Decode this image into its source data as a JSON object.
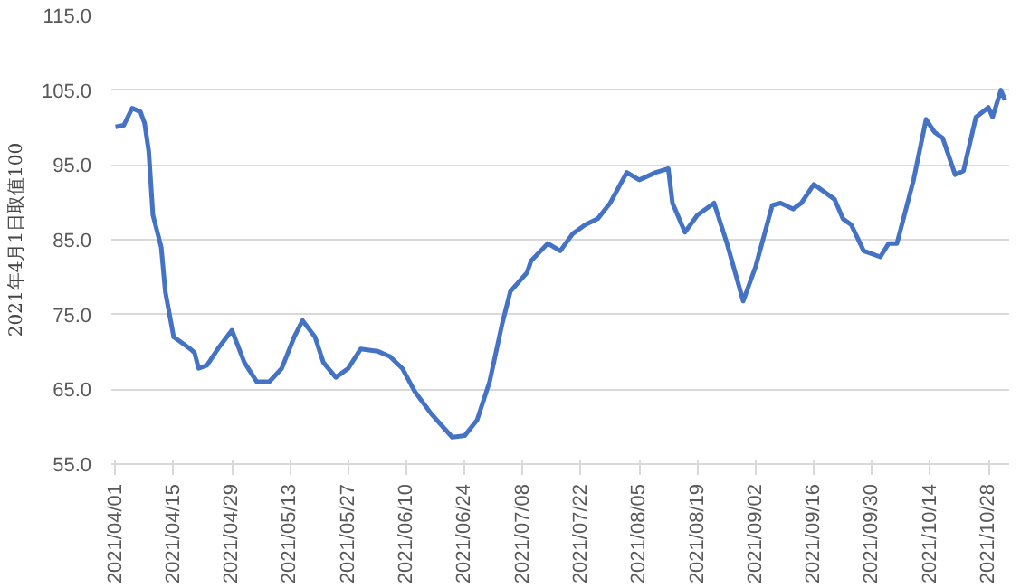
{
  "chart_data": {
    "type": "line",
    "ylabel": "2021年4月1日取值100",
    "ylim": [
      55.0,
      115.0
    ],
    "yticks": [
      {
        "value": 55,
        "label": "55.0"
      },
      {
        "value": 65,
        "label": "65.0"
      },
      {
        "value": 75,
        "label": "75.0"
      },
      {
        "value": 85,
        "label": "85.0"
      },
      {
        "value": 95,
        "label": "95.0"
      },
      {
        "value": 105,
        "label": "105.0"
      },
      {
        "value": 115,
        "label": "115.0"
      }
    ],
    "xlim": [
      "2021-03-31",
      "2021-11-02"
    ],
    "xticks": [
      {
        "value": "2021-04-01",
        "label": "2021/04/01"
      },
      {
        "value": "2021-04-15",
        "label": "2021/04/15"
      },
      {
        "value": "2021-04-29",
        "label": "2021/04/29"
      },
      {
        "value": "2021-05-13",
        "label": "2021/05/13"
      },
      {
        "value": "2021-05-27",
        "label": "2021/05/27"
      },
      {
        "value": "2021-06-10",
        "label": "2021/06/10"
      },
      {
        "value": "2021-06-24",
        "label": "2021/06/24"
      },
      {
        "value": "2021-07-08",
        "label": "2021/07/08"
      },
      {
        "value": "2021-07-22",
        "label": "2021/07/22"
      },
      {
        "value": "2021-08-05",
        "label": "2021/08/05"
      },
      {
        "value": "2021-08-19",
        "label": "2021/08/19"
      },
      {
        "value": "2021-09-02",
        "label": "2021/09/02"
      },
      {
        "value": "2021-09-16",
        "label": "2021/09/16"
      },
      {
        "value": "2021-09-30",
        "label": "2021/09/30"
      },
      {
        "value": "2021-10-14",
        "label": "2021/10/14"
      },
      {
        "value": "2021-10-28",
        "label": "2021/10/28"
      }
    ],
    "grid": "y",
    "x": [
      "2021-04-01",
      "2021-04-03",
      "2021-04-05",
      "2021-04-07",
      "2021-04-08",
      "2021-04-09",
      "2021-04-10",
      "2021-04-12",
      "2021-04-13",
      "2021-04-15",
      "2021-04-17",
      "2021-04-19",
      "2021-04-20",
      "2021-04-21",
      "2021-04-23",
      "2021-04-26",
      "2021-04-29",
      "2021-05-02",
      "2021-05-05",
      "2021-05-08",
      "2021-05-11",
      "2021-05-14",
      "2021-05-16",
      "2021-05-19",
      "2021-05-21",
      "2021-05-24",
      "2021-05-27",
      "2021-05-30",
      "2021-06-03",
      "2021-06-06",
      "2021-06-09",
      "2021-06-12",
      "2021-06-16",
      "2021-06-21",
      "2021-06-24",
      "2021-06-27",
      "2021-06-30",
      "2021-07-03",
      "2021-07-05",
      "2021-07-09",
      "2021-07-10",
      "2021-07-14",
      "2021-07-17",
      "2021-07-20",
      "2021-07-23",
      "2021-07-26",
      "2021-07-29",
      "2021-08-02",
      "2021-08-05",
      "2021-08-09",
      "2021-08-12",
      "2021-08-13",
      "2021-08-16",
      "2021-08-19",
      "2021-08-23",
      "2021-08-26",
      "2021-08-29",
      "2021-08-30",
      "2021-09-02",
      "2021-09-06",
      "2021-09-08",
      "2021-09-11",
      "2021-09-13",
      "2021-09-16",
      "2021-09-21",
      "2021-09-23",
      "2021-09-25",
      "2021-09-28",
      "2021-10-02",
      "2021-10-04",
      "2021-10-06",
      "2021-10-10",
      "2021-10-13",
      "2021-10-15",
      "2021-10-17",
      "2021-10-20",
      "2021-10-22",
      "2021-10-25",
      "2021-10-28",
      "2021-10-29",
      "2021-10-31",
      "2021-11-01"
    ],
    "series": [
      {
        "color": "#4472c4",
        "values": [
          100.1,
          100.3,
          102.6,
          102.1,
          100.6,
          96.8,
          88.3,
          84.0,
          78.0,
          72.0,
          71.2,
          70.4,
          69.9,
          67.8,
          68.2,
          70.7,
          72.9,
          68.6,
          66.0,
          66.0,
          67.8,
          72.0,
          74.2,
          72.0,
          68.6,
          66.6,
          67.8,
          70.4,
          70.1,
          69.4,
          67.8,
          64.7,
          61.7,
          58.6,
          58.8,
          60.9,
          66.0,
          73.7,
          78.1,
          80.6,
          82.2,
          84.5,
          83.5,
          85.8,
          87.0,
          87.8,
          89.9,
          94.0,
          93.0,
          94.0,
          94.5,
          89.9,
          86.0,
          88.3,
          89.9,
          84.7,
          78.8,
          76.8,
          81.4,
          89.6,
          89.9,
          89.1,
          89.9,
          92.4,
          90.4,
          87.8,
          87.0,
          83.5,
          82.7,
          84.5,
          84.5,
          93.0,
          101.1,
          99.4,
          98.6,
          93.7,
          94.2,
          101.4,
          102.7,
          101.4,
          105.0,
          103.7
        ]
      }
    ]
  }
}
